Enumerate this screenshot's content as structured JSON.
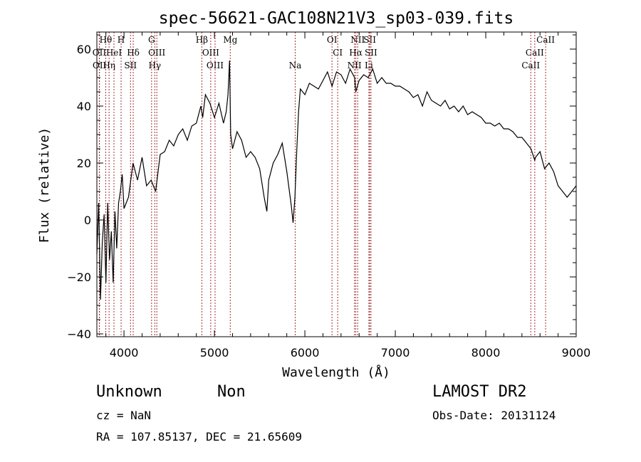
{
  "chart_data": {
    "type": "line",
    "title": "spec-56621-GAC108N21V3_sp03-039.fits",
    "xlabel": "Wavelength (Å)",
    "ylabel": "Flux (relative)",
    "xlim": [
      3700,
      9000
    ],
    "ylim": [
      -41,
      66
    ],
    "xticks": [
      4000,
      5000,
      6000,
      7000,
      8000,
      9000
    ],
    "yticks": [
      -40,
      -20,
      0,
      20,
      40,
      60
    ],
    "grid": false,
    "series": [
      {
        "x": [
          3700,
          3720,
          3740,
          3760,
          3780,
          3800,
          3820,
          3840,
          3860,
          3880,
          3900,
          3920,
          3940,
          3960,
          3980,
          4000,
          4050,
          4100,
          4150,
          4200,
          4250,
          4300,
          4350,
          4400,
          4450,
          4500,
          4550,
          4600,
          4650,
          4700,
          4750,
          4800,
          4850,
          4870,
          4900,
          4950,
          5000,
          5050,
          5100,
          5130,
          5150,
          5167,
          5180,
          5200,
          5250,
          5300,
          5350,
          5400,
          5450,
          5500,
          5550,
          5580,
          5600,
          5650,
          5700,
          5750,
          5800,
          5850,
          5870,
          5890,
          5910,
          5930,
          5950,
          6000,
          6050,
          6100,
          6150,
          6200,
          6250,
          6300,
          6350,
          6400,
          6450,
          6500,
          6550,
          6563,
          6600,
          6650,
          6700,
          6750,
          6800,
          6850,
          6900,
          6950,
          7000,
          7050,
          7100,
          7150,
          7200,
          7250,
          7300,
          7350,
          7400,
          7450,
          7500,
          7550,
          7600,
          7650,
          7700,
          7750,
          7800,
          7850,
          7900,
          7950,
          8000,
          8050,
          8100,
          8150,
          8200,
          8250,
          8300,
          8350,
          8400,
          8450,
          8500,
          8542,
          8550,
          8600,
          8650,
          8700,
          8750,
          8800,
          8850,
          8900,
          8950,
          9000
        ],
        "y": [
          -12,
          6,
          -28,
          -8,
          2,
          -22,
          6,
          -14,
          -4,
          -22,
          3,
          -10,
          6,
          10,
          16,
          4,
          8,
          20,
          14,
          22,
          12,
          14,
          10,
          23,
          24,
          28,
          26,
          30,
          32,
          28,
          33,
          34,
          40,
          36,
          44,
          41,
          36,
          41,
          34,
          38,
          44,
          56,
          30,
          25,
          31,
          28,
          22,
          24,
          22,
          18,
          8,
          3,
          14,
          20,
          23,
          27,
          17,
          5,
          -1,
          8,
          24,
          38,
          46,
          44,
          48,
          47,
          46,
          49,
          52,
          47,
          52,
          51,
          48,
          53,
          50,
          45,
          49,
          51,
          50,
          53,
          48,
          50,
          48,
          48,
          47,
          47,
          46,
          45,
          43,
          44,
          40,
          45,
          42,
          41,
          40,
          42,
          39,
          40,
          38,
          40,
          37,
          38,
          37,
          36,
          34,
          34,
          33,
          34,
          32,
          32,
          31,
          29,
          29,
          27,
          25,
          21,
          22,
          24,
          18,
          20,
          17,
          12,
          10,
          8,
          10,
          12
        ]
      }
    ],
    "lines": [
      {
        "label": "Hθ",
        "x": 3798,
        "row": 0
      },
      {
        "label": "H",
        "x": 3968,
        "row": 0
      },
      {
        "label": "G",
        "x": 4305,
        "row": 0
      },
      {
        "label": "Hβ",
        "x": 4861,
        "row": 0
      },
      {
        "label": "Mg",
        "x": 5175,
        "row": 0
      },
      {
        "label": "OI",
        "x": 6300,
        "row": 0
      },
      {
        "label": "NII",
        "x": 6584,
        "row": 0
      },
      {
        "label": "SII",
        "x": 6717,
        "row": 0
      },
      {
        "label": "CaII",
        "x": 8662,
        "row": 0
      },
      {
        "label": "OII",
        "x": 3727,
        "row": 1
      },
      {
        "label": "HeI",
        "x": 3889,
        "row": 1
      },
      {
        "label": "Hδ",
        "x": 4102,
        "row": 1
      },
      {
        "label": "OIII",
        "x": 4363,
        "row": 1
      },
      {
        "label": "OIII",
        "x": 4959,
        "row": 1
      },
      {
        "label": "CI",
        "x": 6363,
        "row": 1
      },
      {
        "label": "Hα",
        "x": 6563,
        "row": 1
      },
      {
        "label": "SII",
        "x": 6731,
        "row": 1
      },
      {
        "label": "CaII",
        "x": 8542,
        "row": 1
      },
      {
        "label": "OII",
        "x": 3729,
        "row": 2
      },
      {
        "label": "Hη",
        "x": 3835,
        "row": 2
      },
      {
        "label": "SII",
        "x": 4072,
        "row": 2
      },
      {
        "label": "Hγ",
        "x": 4340,
        "row": 2
      },
      {
        "label": "OIII",
        "x": 5007,
        "row": 2
      },
      {
        "label": "Na",
        "x": 5893,
        "row": 2
      },
      {
        "label": "NII",
        "x": 6548,
        "row": 2
      },
      {
        "label": "Li",
        "x": 6708,
        "row": 2
      },
      {
        "label": "CaII",
        "x": 8498,
        "row": 2
      }
    ]
  },
  "info": {
    "class_label": "Unknown",
    "subclass_label": "Non",
    "survey": "LAMOST DR2",
    "cz": "cz = NaN",
    "obs_date": "Obs-Date: 20131124",
    "coords": "RA = 107.85137, DEC =  21.65609"
  }
}
